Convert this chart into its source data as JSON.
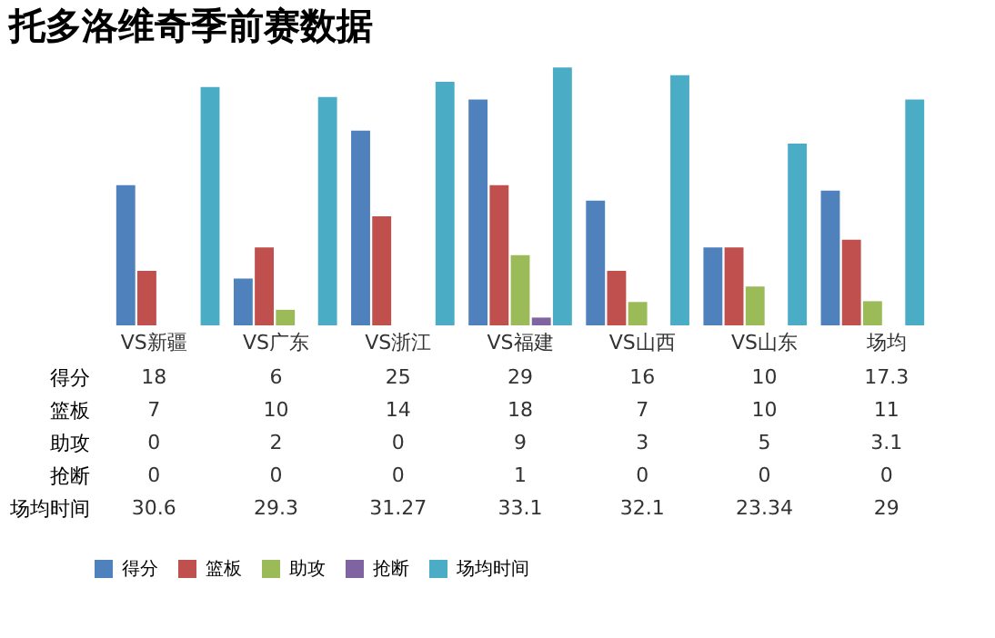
{
  "chart_data": {
    "type": "bar",
    "title": "托多洛维奇季前赛数据",
    "categories": [
      "VS新疆",
      "VS广东",
      "VS浙江",
      "VS福建",
      "VS山西",
      "VS山东",
      "场均"
    ],
    "series": [
      {
        "name": "得分",
        "color": "#4f81bd",
        "values": [
          18,
          6,
          25,
          29,
          16,
          10,
          17.3
        ]
      },
      {
        "name": "篮板",
        "color": "#c0504d",
        "values": [
          7,
          10,
          14,
          18,
          7,
          10,
          11
        ]
      },
      {
        "name": "助攻",
        "color": "#9bbb59",
        "values": [
          0,
          2,
          0,
          9,
          3,
          5,
          3.1
        ]
      },
      {
        "name": "抢断",
        "color": "#8064a2",
        "values": [
          0,
          0,
          0,
          1,
          0,
          0,
          0
        ]
      },
      {
        "name": "场均时间",
        "color": "#4bacc6",
        "values": [
          30.6,
          29.3,
          31.27,
          33.1,
          32.1,
          23.34,
          29
        ]
      }
    ],
    "data_labels": true,
    "legend": "bottom",
    "grid": false
  }
}
